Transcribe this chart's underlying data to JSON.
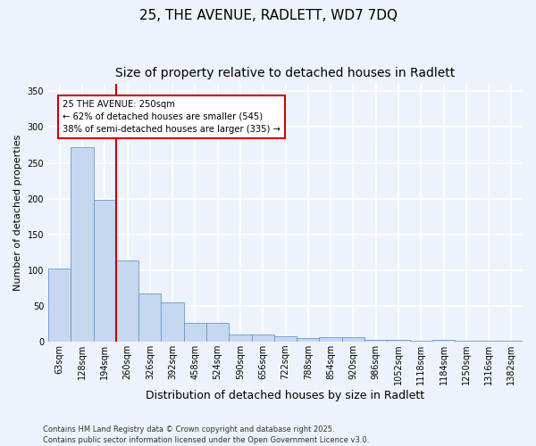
{
  "title1": "25, THE AVENUE, RADLETT, WD7 7DQ",
  "title2": "Size of property relative to detached houses in Radlett",
  "xlabel": "Distribution of detached houses by size in Radlett",
  "ylabel": "Number of detached properties",
  "categories": [
    "63sqm",
    "128sqm",
    "194sqm",
    "260sqm",
    "326sqm",
    "392sqm",
    "458sqm",
    "524sqm",
    "590sqm",
    "656sqm",
    "722sqm",
    "788sqm",
    "854sqm",
    "920sqm",
    "986sqm",
    "1052sqm",
    "1118sqm",
    "1184sqm",
    "1250sqm",
    "1316sqm",
    "1382sqm"
  ],
  "values": [
    103,
    272,
    198,
    114,
    67,
    55,
    27,
    27,
    10,
    10,
    8,
    5,
    6,
    6,
    3,
    3,
    1,
    3,
    2,
    1,
    1
  ],
  "bar_color": "#c5d8f0",
  "bar_edge_color": "#6699cc",
  "vline_color": "#cc0000",
  "annotation_text": "25 THE AVENUE: 250sqm\n← 62% of detached houses are smaller (545)\n38% of semi-detached houses are larger (335) →",
  "annotation_box_color": "#cc0000",
  "ylim": [
    0,
    360
  ],
  "yticks": [
    0,
    50,
    100,
    150,
    200,
    250,
    300,
    350
  ],
  "background_color": "#eef2fa",
  "grid_color": "#ffffff",
  "footer_text": "Contains HM Land Registry data © Crown copyright and database right 2025.\nContains public sector information licensed under the Open Government Licence v3.0.",
  "title_fontsize": 11,
  "subtitle_fontsize": 10,
  "ylabel_fontsize": 8,
  "xlabel_fontsize": 9,
  "tick_fontsize": 7,
  "footer_fontsize": 6,
  "vline_pos": 2.5
}
